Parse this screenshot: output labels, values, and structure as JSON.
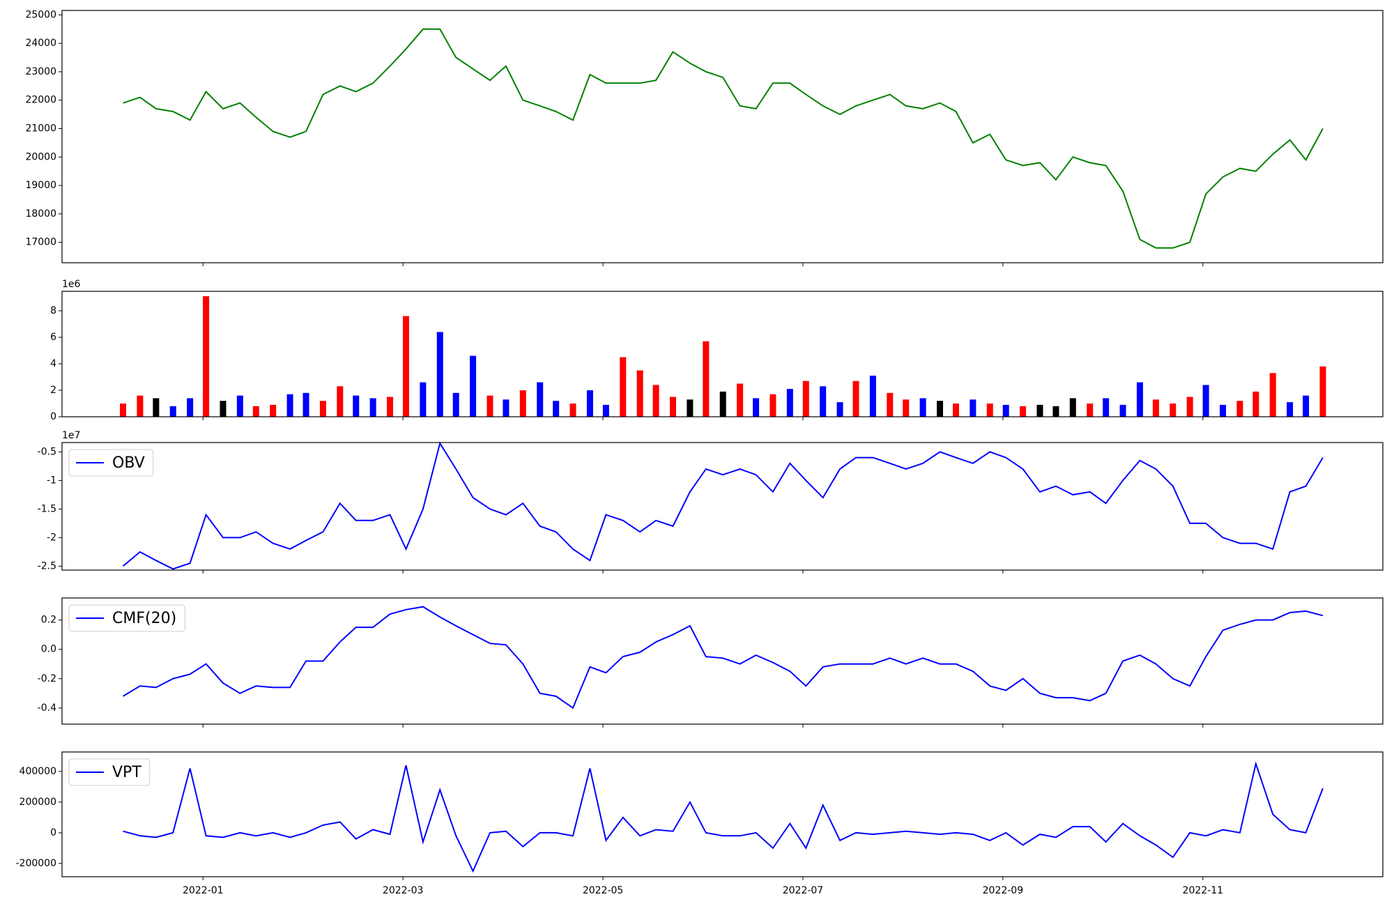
{
  "chart_data": [
    {
      "type": "line",
      "color": "#008000",
      "x": [
        0.2,
        0.37,
        0.53,
        0.7,
        0.87,
        1.03,
        1.2,
        1.37,
        1.53,
        1.7,
        1.87,
        2.03,
        2.2,
        2.37,
        2.53,
        2.7,
        2.87,
        3.03,
        3.2,
        3.37,
        3.53,
        3.7,
        3.87,
        4.03,
        4.2,
        4.37,
        4.53,
        4.7,
        4.87,
        5.03,
        5.2,
        5.37,
        5.53,
        5.7,
        5.87,
        6.03,
        6.2,
        6.37,
        6.53,
        6.7,
        6.87,
        7.03,
        7.2,
        7.37,
        7.53,
        7.7,
        7.87,
        8.03,
        8.2,
        8.37,
        8.53,
        8.7,
        8.87,
        9.03,
        9.2,
        9.37,
        9.53,
        9.7,
        9.87,
        10.03,
        10.2,
        10.37,
        10.53,
        10.7,
        10.87,
        11.03,
        11.2,
        11.37,
        11.53,
        11.7,
        11.87,
        12.03,
        12.2
      ],
      "values": [
        21900,
        22100,
        21700,
        21600,
        21300,
        22300,
        21700,
        21900,
        21400,
        20900,
        20700,
        20900,
        22200,
        22500,
        22300,
        22600,
        23200,
        23800,
        24500,
        24500,
        23500,
        23100,
        22700,
        23200,
        22000,
        21800,
        21600,
        21300,
        22900,
        22600,
        22600,
        22600,
        22700,
        23700,
        23300,
        23000,
        22800,
        21800,
        21700,
        22600,
        22600,
        22200,
        21800,
        21500,
        21800,
        22000,
        22200,
        21800,
        21700,
        21900,
        21600,
        20500,
        20800,
        19900,
        19700,
        19800,
        19200,
        20000,
        19800,
        19700,
        18800,
        17100,
        16800,
        16800,
        17000,
        18700,
        19300,
        19600,
        19500,
        20100,
        20600,
        19900,
        21000
      ],
      "ylim": [
        16281,
        25156
      ],
      "yticks": [
        17000,
        18000,
        19000,
        20000,
        21000,
        22000,
        23000,
        24000,
        25000
      ]
    },
    {
      "type": "bar",
      "offset_label": "1e6",
      "x": [
        0.2,
        0.37,
        0.53,
        0.7,
        0.87,
        1.03,
        1.2,
        1.37,
        1.53,
        1.7,
        1.87,
        2.03,
        2.2,
        2.37,
        2.53,
        2.7,
        2.87,
        3.03,
        3.2,
        3.37,
        3.53,
        3.7,
        3.87,
        4.03,
        4.2,
        4.37,
        4.53,
        4.7,
        4.87,
        5.03,
        5.2,
        5.37,
        5.53,
        5.7,
        5.87,
        6.03,
        6.2,
        6.37,
        6.53,
        6.7,
        6.87,
        7.03,
        7.2,
        7.37,
        7.53,
        7.7,
        7.87,
        8.03,
        8.2,
        8.37,
        8.53,
        8.7,
        8.87,
        9.03,
        9.2,
        9.37,
        9.53,
        9.7,
        9.87,
        10.03,
        10.2,
        10.37,
        10.53,
        10.7,
        10.87,
        11.03,
        11.2,
        11.37,
        11.53,
        11.7,
        11.87,
        12.03,
        12.2
      ],
      "values": [
        1.0,
        1.6,
        1.4,
        0.8,
        1.4,
        9.1,
        1.2,
        1.6,
        0.8,
        0.9,
        1.7,
        1.8,
        1.2,
        2.3,
        1.6,
        1.4,
        1.5,
        7.6,
        2.6,
        6.4,
        1.8,
        4.6,
        1.6,
        1.3,
        2.0,
        2.6,
        1.2,
        1.0,
        2.0,
        0.9,
        4.5,
        3.5,
        2.4,
        1.5,
        1.3,
        5.7,
        1.9,
        2.5,
        1.4,
        1.7,
        2.1,
        2.7,
        2.3,
        1.1,
        2.7,
        3.1,
        1.8,
        1.3,
        1.4,
        1.2,
        1.0,
        1.3,
        1.0,
        0.9,
        0.8,
        0.9,
        0.8,
        1.4,
        1.0,
        1.4,
        0.9,
        2.6,
        1.3,
        1.0,
        1.5,
        2.4,
        0.9,
        1.2,
        1.9,
        3.3,
        1.1,
        1.6,
        3.8
      ],
      "colors": [
        "red",
        "red",
        "black",
        "blue",
        "blue",
        "red",
        "black",
        "blue",
        "red",
        "red",
        "blue",
        "blue",
        "red",
        "red",
        "blue",
        "blue",
        "red",
        "red",
        "blue",
        "blue",
        "blue",
        "blue",
        "red",
        "blue",
        "red",
        "blue",
        "blue",
        "red",
        "blue",
        "blue",
        "red",
        "red",
        "red",
        "red",
        "black",
        "red",
        "black",
        "red",
        "blue",
        "red",
        "blue",
        "red",
        "blue",
        "blue",
        "red",
        "blue",
        "red",
        "red",
        "blue",
        "black",
        "red",
        "blue",
        "red",
        "blue",
        "red",
        "black",
        "black",
        "black",
        "red",
        "blue",
        "blue",
        "blue",
        "red",
        "red",
        "red",
        "blue",
        "blue",
        "red",
        "red",
        "red",
        "blue",
        "blue",
        "red"
      ],
      "ylim": [
        0,
        9.47
      ],
      "yticks": [
        0,
        2,
        4,
        6,
        8
      ]
    },
    {
      "type": "line",
      "offset_label": "1e7",
      "x": [
        0.2,
        0.37,
        0.53,
        0.7,
        0.87,
        1.03,
        1.2,
        1.37,
        1.53,
        1.7,
        1.87,
        2.03,
        2.2,
        2.37,
        2.53,
        2.7,
        2.87,
        3.03,
        3.2,
        3.37,
        3.53,
        3.7,
        3.87,
        4.03,
        4.2,
        4.37,
        4.53,
        4.7,
        4.87,
        5.03,
        5.2,
        5.37,
        5.53,
        5.7,
        5.87,
        6.03,
        6.2,
        6.37,
        6.53,
        6.7,
        6.87,
        7.03,
        7.2,
        7.37,
        7.53,
        7.7,
        7.87,
        8.03,
        8.2,
        8.37,
        8.53,
        8.7,
        8.87,
        9.03,
        9.2,
        9.37,
        9.53,
        9.7,
        9.87,
        10.03,
        10.2,
        10.37,
        10.53,
        10.7,
        10.87,
        11.03,
        11.2,
        11.37,
        11.53,
        11.7,
        11.87,
        12.03,
        12.2
      ],
      "series": [
        {
          "name": "OBV",
          "color": "#0000ff",
          "values": [
            -2.5,
            -2.25,
            -2.4,
            -2.55,
            -2.45,
            -1.6,
            -2.0,
            -2.0,
            -1.9,
            -2.1,
            -2.2,
            -2.05,
            -1.9,
            -1.4,
            -1.7,
            -1.7,
            -1.6,
            -2.2,
            -1.5,
            -0.35,
            -0.8,
            -1.3,
            -1.5,
            -1.6,
            -1.4,
            -1.8,
            -1.9,
            -2.2,
            -2.4,
            -1.6,
            -1.7,
            -1.9,
            -1.7,
            -1.8,
            -1.2,
            -0.8,
            -0.9,
            -0.8,
            -0.9,
            -1.2,
            -0.7,
            -1.0,
            -1.3,
            -0.8,
            -0.6,
            -0.6,
            -0.7,
            -0.8,
            -0.7,
            -0.5,
            -0.6,
            -0.7,
            -0.5,
            -0.6,
            -0.8,
            -1.2,
            -1.1,
            -1.25,
            -1.2,
            -1.4,
            -1.0,
            -0.65,
            -0.8,
            -1.1,
            -1.75,
            -1.75,
            -2.0,
            -2.1,
            -2.1,
            -2.2,
            -1.2,
            -1.1,
            -0.6
          ]
        }
      ],
      "ylim": [
        -2.569,
        -0.336
      ],
      "yticks": [
        -2.5,
        -2.0,
        -1.5,
        -1.0,
        -0.5
      ]
    },
    {
      "type": "line",
      "x": [
        0.2,
        0.37,
        0.53,
        0.7,
        0.87,
        1.03,
        1.2,
        1.37,
        1.53,
        1.7,
        1.87,
        2.03,
        2.2,
        2.37,
        2.53,
        2.7,
        2.87,
        3.03,
        3.2,
        3.37,
        3.53,
        3.7,
        3.87,
        4.03,
        4.2,
        4.37,
        4.53,
        4.7,
        4.87,
        5.03,
        5.2,
        5.37,
        5.53,
        5.7,
        5.87,
        6.03,
        6.2,
        6.37,
        6.53,
        6.7,
        6.87,
        7.03,
        7.2,
        7.37,
        7.53,
        7.7,
        7.87,
        8.03,
        8.2,
        8.37,
        8.53,
        8.7,
        8.87,
        9.03,
        9.2,
        9.37,
        9.53,
        9.7,
        9.87,
        10.03,
        10.2,
        10.37,
        10.53,
        10.7,
        10.87,
        11.03,
        11.2,
        11.37,
        11.53,
        11.7,
        11.87,
        12.03,
        12.2
      ],
      "series": [
        {
          "name": "CMF(20)",
          "color": "#0000ff",
          "values": [
            -0.32,
            -0.25,
            -0.26,
            -0.2,
            -0.17,
            -0.1,
            -0.23,
            -0.3,
            -0.25,
            -0.26,
            -0.26,
            -0.08,
            -0.08,
            0.05,
            0.15,
            0.15,
            0.24,
            0.27,
            0.29,
            0.22,
            0.16,
            0.1,
            0.04,
            0.03,
            -0.1,
            -0.3,
            -0.32,
            -0.4,
            -0.12,
            -0.16,
            -0.05,
            -0.02,
            0.05,
            0.1,
            0.16,
            -0.05,
            -0.06,
            -0.1,
            -0.04,
            -0.09,
            -0.15,
            -0.25,
            -0.12,
            -0.1,
            -0.1,
            -0.1,
            -0.06,
            -0.1,
            -0.06,
            -0.1,
            -0.1,
            -0.15,
            -0.25,
            -0.28,
            -0.2,
            -0.3,
            -0.33,
            -0.33,
            -0.35,
            -0.3,
            -0.08,
            -0.04,
            -0.1,
            -0.2,
            -0.25,
            -0.05,
            0.13,
            0.17,
            0.2,
            0.2,
            0.25,
            0.26,
            0.23
          ]
        }
      ],
      "ylim": [
        -0.51,
        0.35
      ],
      "yticks": [
        -0.4,
        -0.2,
        {
          "value": 0,
          "label": "0.0"
        },
        0.2
      ]
    },
    {
      "type": "line",
      "x": [
        0.2,
        0.37,
        0.53,
        0.7,
        0.87,
        1.03,
        1.2,
        1.37,
        1.53,
        1.7,
        1.87,
        2.03,
        2.2,
        2.37,
        2.53,
        2.7,
        2.87,
        3.03,
        3.2,
        3.37,
        3.53,
        3.7,
        3.87,
        4.03,
        4.2,
        4.37,
        4.53,
        4.7,
        4.87,
        5.03,
        5.2,
        5.37,
        5.53,
        5.7,
        5.87,
        6.03,
        6.2,
        6.37,
        6.53,
        6.7,
        6.87,
        7.03,
        7.2,
        7.37,
        7.53,
        7.7,
        7.87,
        8.03,
        8.2,
        8.37,
        8.53,
        8.7,
        8.87,
        9.03,
        9.2,
        9.37,
        9.53,
        9.7,
        9.87,
        10.03,
        10.2,
        10.37,
        10.53,
        10.7,
        10.87,
        11.03,
        11.2,
        11.37,
        11.53,
        11.7,
        11.87,
        12.03,
        12.2
      ],
      "series": [
        {
          "name": "VPT",
          "color": "#0000ff",
          "values": [
            10000,
            -20000,
            -30000,
            0,
            420000,
            -20000,
            -30000,
            0,
            -20000,
            0,
            -30000,
            0,
            50000,
            70000,
            -40000,
            20000,
            -10000,
            440000,
            -60000,
            280000,
            -20000,
            -250000,
            0,
            10000,
            -90000,
            0,
            0,
            -20000,
            420000,
            -50000,
            100000,
            -20000,
            20000,
            10000,
            200000,
            0,
            -20000,
            -20000,
            0,
            -100000,
            60000,
            -100000,
            180000,
            -50000,
            0,
            -10000,
            0,
            10000,
            0,
            -10000,
            0,
            -10000,
            -50000,
            0,
            -80000,
            -10000,
            -30000,
            40000,
            40000,
            -60000,
            60000,
            -20000,
            -80000,
            -160000,
            0,
            -20000,
            20000,
            0,
            450000,
            120000,
            20000,
            0,
            290000
          ]
        }
      ],
      "ylim": [
        -286600,
        526900
      ],
      "yticks": [
        -200000,
        0,
        200000,
        400000
      ],
      "xlim": [
        -0.41,
        12.8
      ],
      "xticks": [
        {
          "value": 1,
          "label": "2022-01"
        },
        {
          "value": 3,
          "label": "2022-03"
        },
        {
          "value": 5,
          "label": "2022-05"
        },
        {
          "value": 7,
          "label": "2022-07"
        },
        {
          "value": 9,
          "label": "2022-09"
        },
        {
          "value": 11,
          "label": "2022-11"
        }
      ]
    }
  ]
}
